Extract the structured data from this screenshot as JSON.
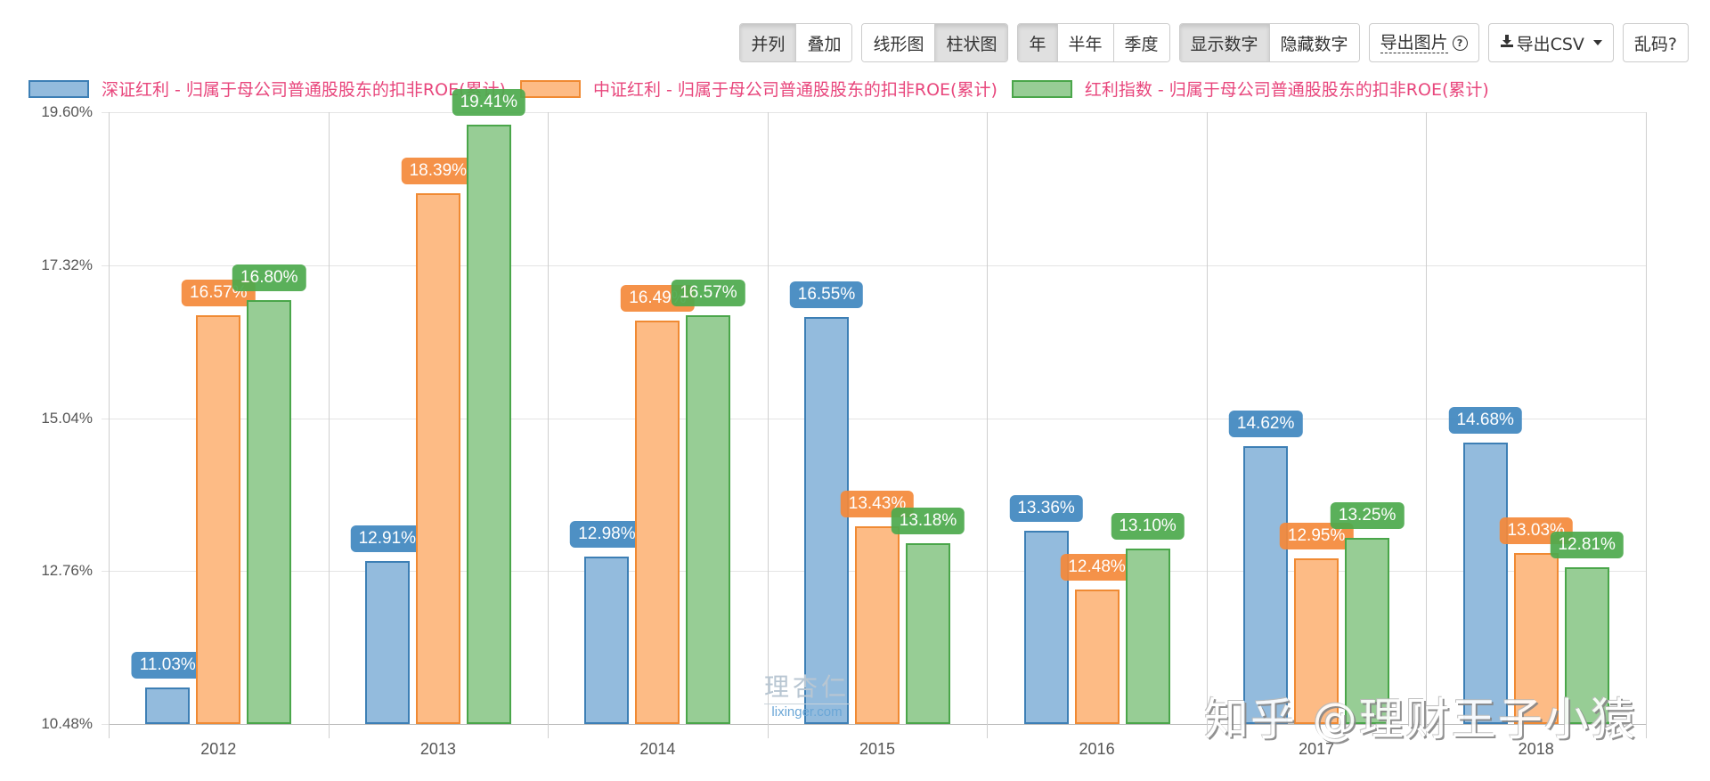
{
  "toolbar": {
    "groups": [
      {
        "name": "layout",
        "buttons": [
          {
            "label": "并列",
            "active": true
          },
          {
            "label": "叠加",
            "active": false
          }
        ]
      },
      {
        "name": "chart-type",
        "buttons": [
          {
            "label": "线形图",
            "active": false
          },
          {
            "label": "柱状图",
            "active": true
          }
        ]
      },
      {
        "name": "period",
        "buttons": [
          {
            "label": "年",
            "active": true
          },
          {
            "label": "半年",
            "active": false
          },
          {
            "label": "季度",
            "active": false
          }
        ]
      },
      {
        "name": "numbers",
        "buttons": [
          {
            "label": "显示数字",
            "active": true
          },
          {
            "label": "隐藏数字",
            "active": false
          }
        ]
      }
    ],
    "export_image": "导出图片",
    "export_image_help_icon": "question-circle-icon",
    "export_csv": "导出CSV",
    "export_csv_icon": "download-icon",
    "garbled": "乱码?"
  },
  "colors": {
    "series_fill": [
      "#93bbdd",
      "#fdbb85",
      "#97cd95"
    ],
    "series_border": [
      "#3d7fb5",
      "#f08a33",
      "#4aa64a"
    ],
    "label_bg": [
      "#3f87c0",
      "#f5893a",
      "#4daa4d"
    ],
    "legend_text": "#e8467c"
  },
  "watermarks": {
    "lixinger_cn": "理杏仁",
    "lixinger_en": "lixinger.com",
    "zhihu": "知乎 @理财王子小猿"
  },
  "chart_data": {
    "type": "bar",
    "title": "",
    "xlabel": "",
    "ylabel": "",
    "categories": [
      "2012",
      "2013",
      "2014",
      "2015",
      "2016",
      "2017",
      "2018"
    ],
    "series": [
      {
        "name": "深证红利 - 归属于母公司普通股股东的扣非ROE(累计)",
        "values": [
          11.03,
          12.91,
          12.98,
          16.55,
          13.36,
          14.62,
          14.68
        ]
      },
      {
        "name": "中证红利 - 归属于母公司普通股股东的扣非ROE(累计)",
        "values": [
          16.57,
          18.39,
          16.49,
          13.43,
          12.48,
          12.95,
          13.03
        ]
      },
      {
        "name": "红利指数 - 归属于母公司普通股股东的扣非ROE(累计)",
        "values": [
          16.8,
          19.41,
          16.57,
          13.18,
          13.1,
          13.25,
          12.81
        ]
      }
    ],
    "value_labels": [
      [
        "11.03%",
        "12.91%",
        "12.98%",
        "16.55%",
        "13.36%",
        "14.62%",
        "14.68%"
      ],
      [
        "16.57%",
        "18.39%",
        "16.49%",
        "13.43%",
        "12.48%",
        "12.95%",
        "13.03%"
      ],
      [
        "16.80%",
        "19.41%",
        "16.57%",
        "13.18%",
        "13.10%",
        "13.25%",
        "12.81%"
      ]
    ],
    "y_ticks": [
      "19.60%",
      "17.32%",
      "15.04%",
      "12.76%",
      "10.48%"
    ],
    "y_tick_values": [
      19.6,
      17.32,
      15.04,
      12.76,
      10.48
    ],
    "ylim": [
      10.48,
      19.6
    ],
    "grid": true,
    "legend_position": "top",
    "unit": "%"
  }
}
